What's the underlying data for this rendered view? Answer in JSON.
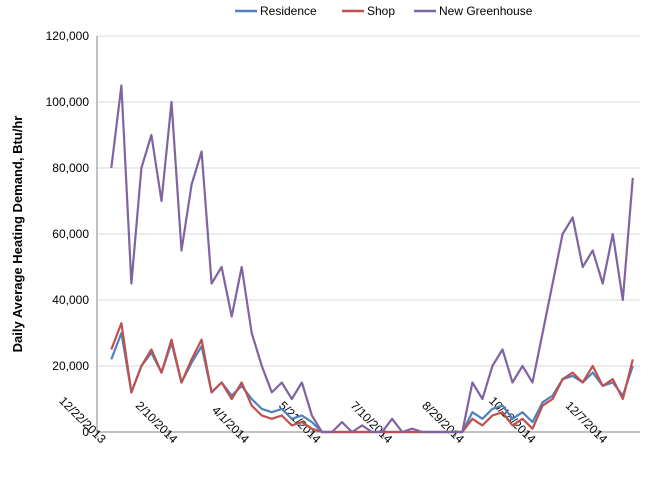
{
  "chart_data": {
    "type": "line",
    "y_label": "Daily Average Heating Demand, Btu/hr",
    "x": [
      "1/1/2014",
      "1/8/2014",
      "1/15/2014",
      "1/22/2014",
      "1/29/2014",
      "2/5/2014",
      "2/12/2014",
      "2/19/2014",
      "2/26/2014",
      "3/5/2014",
      "3/12/2014",
      "3/19/2014",
      "3/26/2014",
      "4/2/2014",
      "4/9/2014",
      "4/16/2014",
      "4/23/2014",
      "4/30/2014",
      "5/7/2014",
      "5/14/2014",
      "5/21/2014",
      "5/28/2014",
      "6/4/2014",
      "6/11/2014",
      "6/18/2014",
      "6/25/2014",
      "7/2/2014",
      "7/9/2014",
      "7/16/2014",
      "7/23/2014",
      "7/30/2014",
      "8/6/2014",
      "8/13/2014",
      "8/20/2014",
      "8/27/2014",
      "9/3/2014",
      "9/10/2014",
      "9/17/2014",
      "9/24/2014",
      "10/1/2014",
      "10/8/2014",
      "10/15/2014",
      "10/22/2014",
      "10/29/2014",
      "11/5/2014",
      "11/12/2014",
      "11/19/2014",
      "11/26/2014",
      "12/3/2014",
      "12/10/2014",
      "12/17/2014",
      "12/24/2014",
      "12/31/2014"
    ],
    "series": [
      {
        "name": "Residence",
        "color": "#4f81bd",
        "values": [
          22000,
          30000,
          12000,
          20000,
          24000,
          18000,
          27000,
          15000,
          21000,
          26000,
          12000,
          15000,
          11000,
          14000,
          10000,
          7000,
          6000,
          7000,
          4000,
          5000,
          3000,
          0,
          0,
          0,
          0,
          0,
          0,
          0,
          0,
          0,
          0,
          0,
          0,
          0,
          0,
          0,
          6000,
          4000,
          7000,
          8000,
          4000,
          6000,
          3000,
          9000,
          11000,
          16000,
          17000,
          15000,
          18000,
          14000,
          15000,
          11000,
          20000
        ]
      },
      {
        "name": "Shop",
        "color": "#c0504d",
        "values": [
          25000,
          33000,
          12000,
          20000,
          25000,
          18000,
          28000,
          15000,
          22000,
          28000,
          12000,
          15000,
          10000,
          15000,
          8000,
          5000,
          4000,
          5000,
          2000,
          3000,
          1000,
          0,
          0,
          0,
          0,
          0,
          0,
          0,
          0,
          0,
          0,
          0,
          0,
          0,
          0,
          0,
          4000,
          2000,
          5000,
          6000,
          2000,
          4000,
          1000,
          8000,
          10000,
          16000,
          18000,
          15000,
          20000,
          14000,
          16000,
          10000,
          22000
        ]
      },
      {
        "name": "New Greenhouse",
        "color": "#8064a2",
        "values": [
          80000,
          105000,
          45000,
          80000,
          90000,
          70000,
          100000,
          55000,
          75000,
          85000,
          45000,
          50000,
          35000,
          50000,
          30000,
          20000,
          12000,
          15000,
          10000,
          15000,
          5000,
          0,
          0,
          3000,
          0,
          2000,
          0,
          0,
          4000,
          0,
          1000,
          0,
          0,
          0,
          0,
          0,
          15000,
          10000,
          20000,
          25000,
          15000,
          20000,
          15000,
          30000,
          45000,
          60000,
          65000,
          50000,
          55000,
          45000,
          60000,
          40000,
          77000
        ]
      }
    ],
    "xlim": [
      "12/22/2013",
      "1/5/2015"
    ],
    "xticks": [
      "12/22/2013",
      "2/10/2014",
      "4/1/2014",
      "5/21/2014",
      "7/10/2014",
      "8/29/2014",
      "10/18/2014",
      "12/7/2014"
    ],
    "ylim": [
      0,
      120000
    ],
    "yticks": [
      0,
      {
        "value": 20000,
        "label": "20,000"
      },
      {
        "value": 40000,
        "label": "40,000"
      },
      {
        "value": 60000,
        "label": "60,000"
      },
      {
        "value": 80000,
        "label": "80,000"
      },
      {
        "value": 100000,
        "label": "100,000"
      },
      {
        "value": 120000,
        "label": "120,000"
      }
    ],
    "grid": true,
    "legend": "top"
  }
}
